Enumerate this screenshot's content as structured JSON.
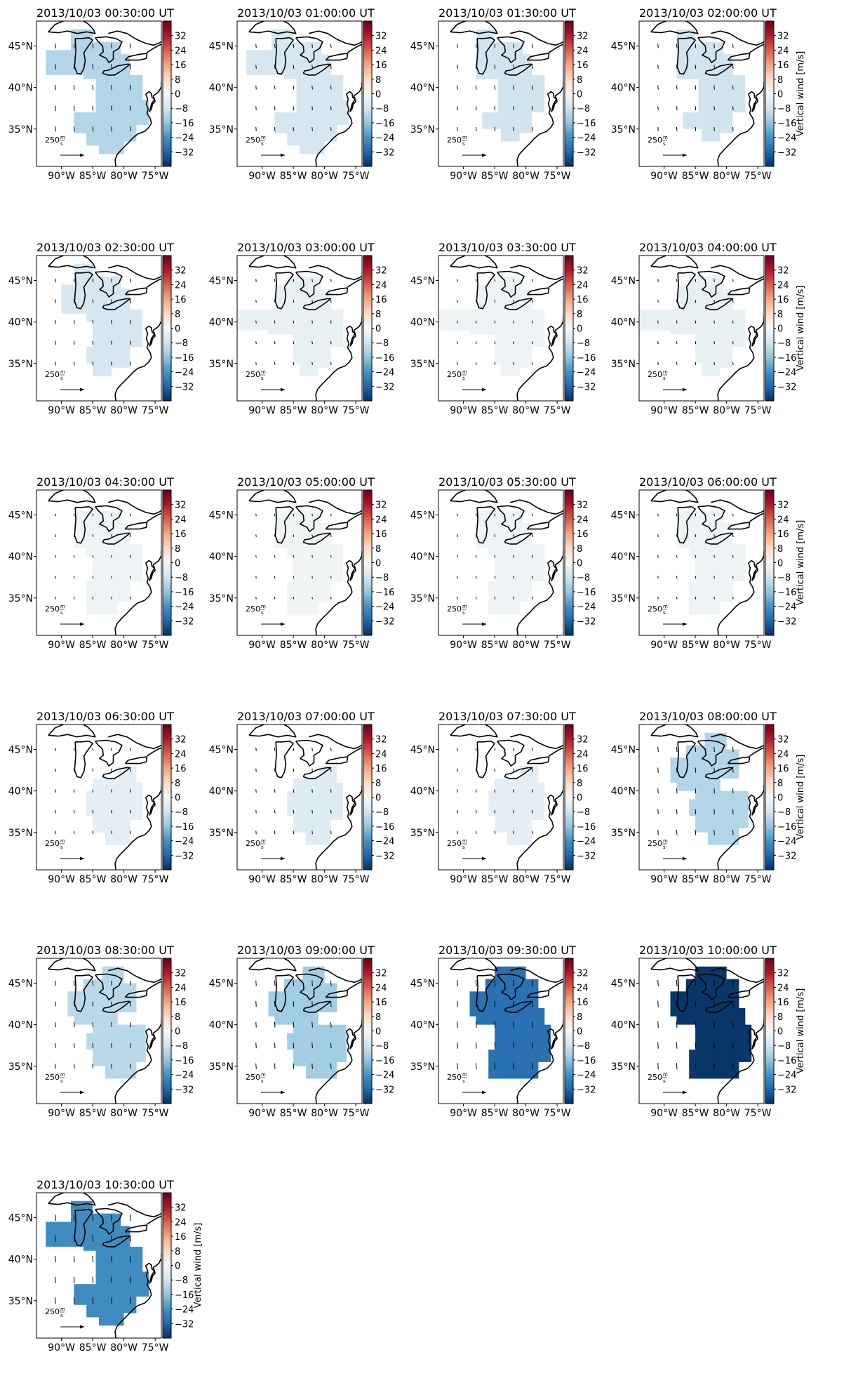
{
  "figure": {
    "colorbar_label": "Vertical wind [m/s]",
    "colorbar_ticks": [
      32,
      24,
      16,
      8,
      0,
      -8,
      -16,
      -24,
      -32
    ],
    "colorbar_range": [
      -40,
      40
    ],
    "colormap": "RdBu_r",
    "colormap_stops": [
      "#053061",
      "#2166ac",
      "#4393c3",
      "#92c5de",
      "#d1e5f0",
      "#f7f7f7",
      "#fddbc7",
      "#f4a582",
      "#d6604d",
      "#b2182b",
      "#67001f"
    ],
    "lon_ticks": [
      "90°W",
      "85°W",
      "80°W",
      "75°W"
    ],
    "lat_ticks": [
      "45°N",
      "40°N",
      "35°N"
    ],
    "quiver_key_label": "250 m/s",
    "quiver_key_num": "250",
    "quiver_key_unit_top": "m",
    "quiver_key_unit_bottom": "s"
  },
  "chart_data": [
    {
      "type": "heatmap",
      "title": "2013/10/03 00:30:00 UT",
      "value": -12,
      "region": "A",
      "show_label": false
    },
    {
      "type": "heatmap",
      "title": "2013/10/03 01:00:00 UT",
      "value": -7,
      "region": "A",
      "show_label": false
    },
    {
      "type": "heatmap",
      "title": "2013/10/03 01:30:00 UT",
      "value": -8,
      "region": "B",
      "show_label": false
    },
    {
      "type": "heatmap",
      "title": "2013/10/03 02:00:00 UT",
      "value": -8,
      "region": "B",
      "show_label": true
    },
    {
      "type": "heatmap",
      "title": "2013/10/03 02:30:00 UT",
      "value": -7,
      "region": "C",
      "show_label": false
    },
    {
      "type": "heatmap",
      "title": "2013/10/03 03:00:00 UT",
      "value": -3,
      "region": "D",
      "show_label": false
    },
    {
      "type": "heatmap",
      "title": "2013/10/03 03:30:00 UT",
      "value": -2,
      "region": "D",
      "show_label": false
    },
    {
      "type": "heatmap",
      "title": "2013/10/03 04:00:00 UT",
      "value": -3,
      "region": "D",
      "show_label": true
    },
    {
      "type": "heatmap",
      "title": "2013/10/03 04:30:00 UT",
      "value": -2,
      "region": "E",
      "show_label": false
    },
    {
      "type": "heatmap",
      "title": "2013/10/03 05:00:00 UT",
      "value": -1,
      "region": "E",
      "show_label": false
    },
    {
      "type": "heatmap",
      "title": "2013/10/03 05:30:00 UT",
      "value": -2,
      "region": "E",
      "show_label": false
    },
    {
      "type": "heatmap",
      "title": "2013/10/03 06:00:00 UT",
      "value": -2,
      "region": "E",
      "show_label": true
    },
    {
      "type": "heatmap",
      "title": "2013/10/03 06:30:00 UT",
      "value": -4,
      "region": "F",
      "show_label": false
    },
    {
      "type": "heatmap",
      "title": "2013/10/03 07:00:00 UT",
      "value": -5,
      "region": "F",
      "show_label": false
    },
    {
      "type": "heatmap",
      "title": "2013/10/03 07:30:00 UT",
      "value": -4,
      "region": "F",
      "show_label": false
    },
    {
      "type": "heatmap",
      "title": "2013/10/03 08:00:00 UT",
      "value": -12,
      "region": "G",
      "show_label": true
    },
    {
      "type": "heatmap",
      "title": "2013/10/03 08:30:00 UT",
      "value": -11,
      "region": "G",
      "show_label": false
    },
    {
      "type": "heatmap",
      "title": "2013/10/03 09:00:00 UT",
      "value": -14,
      "region": "G",
      "show_label": false
    },
    {
      "type": "heatmap",
      "title": "2013/10/03 09:30:00 UT",
      "value": -30,
      "region": "H",
      "show_label": false
    },
    {
      "type": "heatmap",
      "title": "2013/10/03 10:00:00 UT",
      "value": -39,
      "region": "H",
      "show_label": true
    },
    {
      "type": "heatmap",
      "title": "2013/10/03 10:30:00 UT",
      "value": -25,
      "region": "A",
      "show_label": true
    }
  ]
}
